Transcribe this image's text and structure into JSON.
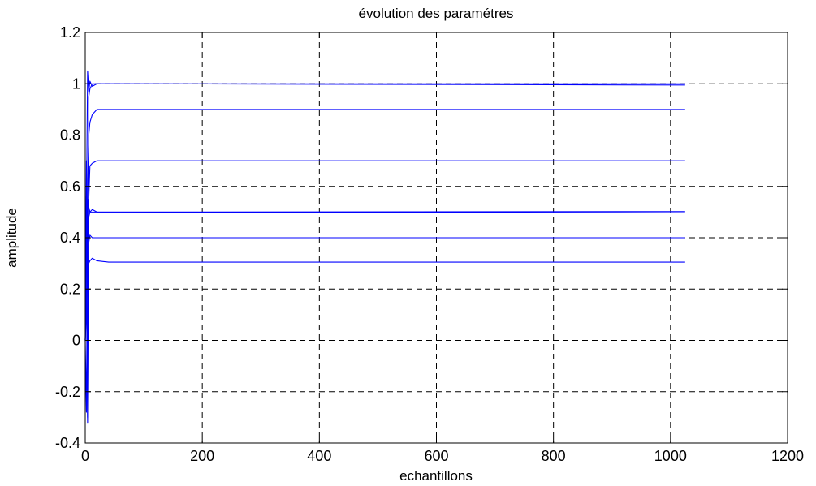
{
  "chart_data": {
    "type": "line",
    "title": "évolution des paramétres",
    "xlabel": "echantillons",
    "ylabel": "amplitude",
    "xlim": [
      0,
      1200
    ],
    "ylim": [
      -0.4,
      1.2
    ],
    "xticks": [
      0,
      200,
      400,
      600,
      800,
      1000,
      1200
    ],
    "yticks": [
      -0.4,
      -0.2,
      0,
      0.2,
      0.4,
      0.6,
      0.8,
      1,
      1.2
    ],
    "xtick_labels": [
      "0",
      "200",
      "400",
      "600",
      "800",
      "1000",
      "1200"
    ],
    "ytick_labels": [
      "-0.4",
      "-0.2",
      "0",
      "0.2",
      "0.4",
      "0.6",
      "0.8",
      "1",
      "1.2"
    ],
    "grid": true,
    "grid_style": "dashed",
    "line_color": "#0000ff",
    "series": [
      {
        "x": [
          0,
          2,
          4,
          6,
          8,
          12,
          20,
          40,
          60,
          1025
        ],
        "y": [
          0,
          0.5,
          1.05,
          0.97,
          1.01,
          0.99,
          1.0,
          1.0,
          1.0,
          1.0
        ]
      },
      {
        "x": [
          0,
          2,
          4,
          6,
          8,
          12,
          20,
          40,
          60,
          1025
        ],
        "y": [
          0,
          0.7,
          -0.3,
          0.95,
          0.98,
          1.0,
          1.0,
          1.0,
          1.0,
          0.995
        ]
      },
      {
        "x": [
          0,
          2,
          4,
          6,
          8,
          12,
          20,
          40,
          60,
          1025
        ],
        "y": [
          0,
          0.3,
          0.6,
          0.8,
          0.85,
          0.88,
          0.9,
          0.9,
          0.9,
          0.9
        ]
      },
      {
        "x": [
          0,
          2,
          4,
          6,
          8,
          12,
          20,
          40,
          60,
          1025
        ],
        "y": [
          0,
          0.2,
          -0.32,
          0.55,
          0.68,
          0.69,
          0.7,
          0.7,
          0.7,
          0.7
        ]
      },
      {
        "x": [
          0,
          2,
          4,
          6,
          8,
          12,
          20,
          40,
          60,
          1025
        ],
        "y": [
          0,
          0.56,
          0.45,
          0.52,
          0.5,
          0.51,
          0.5,
          0.5,
          0.5,
          0.502
        ]
      },
      {
        "x": [
          0,
          2,
          4,
          6,
          8,
          12,
          20,
          40,
          60,
          1025
        ],
        "y": [
          0,
          0.4,
          0.55,
          0.48,
          0.5,
          0.5,
          0.5,
          0.5,
          0.5,
          0.497
        ]
      },
      {
        "x": [
          0,
          2,
          4,
          6,
          8,
          12,
          20,
          40,
          60,
          1025
        ],
        "y": [
          0,
          -0.28,
          0.45,
          0.38,
          0.41,
          0.4,
          0.4,
          0.4,
          0.4,
          0.4
        ]
      },
      {
        "x": [
          0,
          2,
          4,
          6,
          8,
          12,
          20,
          40,
          60,
          1025
        ],
        "y": [
          0,
          0.1,
          0.25,
          0.3,
          0.31,
          0.32,
          0.31,
          0.305,
          0.305,
          0.305
        ]
      }
    ]
  }
}
